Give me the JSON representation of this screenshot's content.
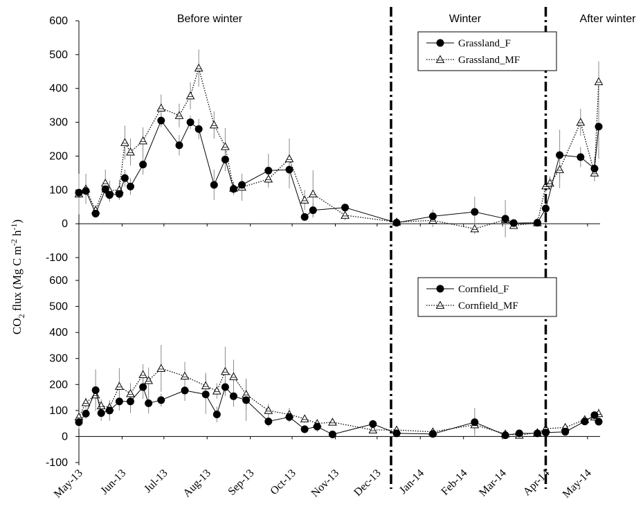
{
  "chart_data": {
    "type": "line",
    "ylabel": "CO2 flux (Mg C m-2 h-1)",
    "ylabel_parts": {
      "base": "CO",
      "sub": "2",
      "mid": " flux (Mg C m",
      "sup1": "-2",
      "mid2": " h",
      "sup2": "-1",
      "end": ")"
    },
    "periods": [
      "Before winter",
      "Winter",
      "After winter"
    ],
    "period_boundaries": [
      "2013-12-11",
      "2014-04-01"
    ],
    "x_ticks": [
      "May-13",
      "Jun-13",
      "Jul-13",
      "Aug-13",
      "Sep-13",
      "Oct-13",
      "Nov-13",
      "Dec-13",
      "Jan-14",
      "Feb-14",
      "Mar-14",
      "Apr-14",
      "May-14"
    ],
    "ylim": [
      -100,
      600
    ],
    "yticks": [
      "-100",
      "0",
      "100",
      "200",
      "300",
      "400",
      "500",
      "600"
    ],
    "panels": [
      {
        "legend": [
          "Grassland_F",
          "Grassland_MF"
        ],
        "series": [
          {
            "name": "Grassland_F",
            "style": "solid-filled-circle",
            "points": [
              [
                "2013-05-01",
                92,
                10
              ],
              [
                "2013-05-06",
                97,
                8
              ],
              [
                "2013-05-13",
                30,
                8
              ],
              [
                "2013-05-20",
                102,
                15
              ],
              [
                "2013-05-23",
                85,
                20
              ],
              [
                "2013-05-30",
                88,
                15
              ],
              [
                "2013-06-03",
                135,
                25
              ],
              [
                "2013-06-07",
                110,
                25
              ],
              [
                "2013-06-16",
                175,
                30
              ],
              [
                "2013-06-29",
                305,
                20
              ],
              [
                "2013-07-12",
                232,
                30
              ],
              [
                "2013-07-20",
                300,
                20
              ],
              [
                "2013-07-26",
                280,
                30
              ],
              [
                "2013-08-06",
                115,
                45
              ],
              [
                "2013-08-14",
                190,
                35
              ],
              [
                "2013-08-20",
                103,
                15
              ],
              [
                "2013-08-26",
                115,
                20
              ],
              [
                "2013-09-14",
                157,
                50
              ],
              [
                "2013-09-29",
                160,
                55
              ],
              [
                "2013-10-10",
                20,
                10
              ],
              [
                "2013-10-16",
                40,
                20
              ],
              [
                "2013-11-08",
                48,
                10
              ],
              [
                "2013-12-15",
                3,
                5
              ],
              [
                "2014-01-10",
                22,
                20
              ],
              [
                "2014-02-09",
                35,
                45
              ],
              [
                "2014-03-03",
                15,
                55
              ],
              [
                "2014-03-09",
                2,
                10
              ],
              [
                "2014-03-26",
                3,
                5
              ],
              [
                "2014-04-01",
                45,
                20
              ],
              [
                "2014-04-11",
                203,
                75
              ],
              [
                "2014-04-26",
                197,
                30
              ],
              [
                "2014-05-06",
                163,
                35
              ],
              [
                "2014-05-09",
                287,
                95
              ]
            ]
          },
          {
            "name": "Grassland_MF",
            "style": "dotted-open-triangle",
            "points": [
              [
                "2013-05-01",
                88,
                60
              ],
              [
                "2013-05-06",
                103,
                45
              ],
              [
                "2013-05-13",
                40,
                15
              ],
              [
                "2013-05-20",
                120,
                40
              ],
              [
                "2013-05-23",
                98,
                30
              ],
              [
                "2013-05-30",
                100,
                30
              ],
              [
                "2013-06-03",
                240,
                50
              ],
              [
                "2013-06-07",
                212,
                40
              ],
              [
                "2013-06-16",
                245,
                40
              ],
              [
                "2013-06-29",
                342,
                40
              ],
              [
                "2013-07-12",
                320,
                35
              ],
              [
                "2013-07-20",
                378,
                40
              ],
              [
                "2013-07-26",
                460,
                55
              ],
              [
                "2013-08-06",
                292,
                40
              ],
              [
                "2013-08-14",
                228,
                55
              ],
              [
                "2013-08-20",
                105,
                20
              ],
              [
                "2013-08-26",
                108,
                40
              ],
              [
                "2013-09-14",
                132,
                15
              ],
              [
                "2013-09-29",
                192,
                60
              ],
              [
                "2013-10-10",
                70,
                30
              ],
              [
                "2013-10-16",
                88,
                70
              ],
              [
                "2013-11-08",
                25,
                15
              ],
              [
                "2013-12-15",
                5,
                5
              ],
              [
                "2014-01-10",
                10,
                20
              ],
              [
                "2014-02-09",
                -15,
                15
              ],
              [
                "2014-03-03",
                12,
                15
              ],
              [
                "2014-03-09",
                -5,
                10
              ],
              [
                "2014-03-26",
                3,
                5
              ],
              [
                "2014-04-01",
                112,
                20
              ],
              [
                "2014-04-04",
                120,
                20
              ],
              [
                "2014-04-11",
                160,
                55
              ],
              [
                "2014-04-26",
                300,
                40
              ],
              [
                "2014-05-06",
                150,
                25
              ],
              [
                "2014-05-09",
                420,
                60
              ]
            ]
          }
        ]
      },
      {
        "legend": [
          "Cornfield_F",
          "Cornfield_MF"
        ],
        "series": [
          {
            "name": "Cornfield_F",
            "style": "solid-filled-circle",
            "points": [
              [
                "2013-05-01",
                55,
                25
              ],
              [
                "2013-05-06",
                88,
                20
              ],
              [
                "2013-05-13",
                178,
                80
              ],
              [
                "2013-05-17",
                90,
                30
              ],
              [
                "2013-05-23",
                100,
                40
              ],
              [
                "2013-05-30",
                135,
                35
              ],
              [
                "2013-06-07",
                135,
                45
              ],
              [
                "2013-06-16",
                190,
                45
              ],
              [
                "2013-06-20",
                128,
                40
              ],
              [
                "2013-06-29",
                140,
                25
              ],
              [
                "2013-07-16",
                177,
                40
              ],
              [
                "2013-07-31",
                162,
                75
              ],
              [
                "2013-08-08",
                85,
                30
              ],
              [
                "2013-08-14",
                190,
                30
              ],
              [
                "2013-08-20",
                155,
                40
              ],
              [
                "2013-08-29",
                140,
                80
              ],
              [
                "2013-09-14",
                58,
                20
              ],
              [
                "2013-09-29",
                75,
                20
              ],
              [
                "2013-10-10",
                28,
                15
              ],
              [
                "2013-10-19",
                38,
                20
              ],
              [
                "2013-10-30",
                8,
                5
              ],
              [
                "2013-11-28",
                48,
                15
              ],
              [
                "2013-12-15",
                12,
                8
              ],
              [
                "2014-01-10",
                10,
                8
              ],
              [
                "2014-02-09",
                55,
                55
              ],
              [
                "2014-03-03",
                5,
                5
              ],
              [
                "2014-03-13",
                12,
                8
              ],
              [
                "2014-03-26",
                12,
                5
              ],
              [
                "2014-04-01",
                15,
                8
              ],
              [
                "2014-04-15",
                18,
                8
              ],
              [
                "2014-04-29",
                58,
                15
              ],
              [
                "2014-05-06",
                82,
                15
              ],
              [
                "2014-05-09",
                57,
                15
              ]
            ]
          },
          {
            "name": "Cornfield_MF",
            "style": "dotted-open-triangle",
            "points": [
              [
                "2013-05-01",
                75,
                15
              ],
              [
                "2013-05-06",
                130,
                20
              ],
              [
                "2013-05-13",
                160,
                20
              ],
              [
                "2013-05-17",
                118,
                25
              ],
              [
                "2013-05-23",
                112,
                20
              ],
              [
                "2013-05-30",
                193,
                70
              ],
              [
                "2013-06-07",
                165,
                40
              ],
              [
                "2013-06-16",
                238,
                40
              ],
              [
                "2013-06-20",
                215,
                50
              ],
              [
                "2013-06-29",
                262,
                90
              ],
              [
                "2013-07-16",
                232,
                55
              ],
              [
                "2013-07-31",
                195,
                50
              ],
              [
                "2013-08-08",
                175,
                30
              ],
              [
                "2013-08-14",
                250,
                95
              ],
              [
                "2013-08-20",
                230,
                65
              ],
              [
                "2013-08-29",
                162,
                60
              ],
              [
                "2013-09-14",
                100,
                25
              ],
              [
                "2013-09-29",
                85,
                25
              ],
              [
                "2013-10-10",
                68,
                15
              ],
              [
                "2013-10-19",
                50,
                15
              ],
              [
                "2013-10-30",
                55,
                10
              ],
              [
                "2013-11-28",
                25,
                10
              ],
              [
                "2013-12-15",
                25,
                10
              ],
              [
                "2014-01-10",
                18,
                15
              ],
              [
                "2014-02-09",
                45,
                30
              ],
              [
                "2014-03-03",
                10,
                5
              ],
              [
                "2014-03-13",
                5,
                5
              ],
              [
                "2014-03-26",
                15,
                10
              ],
              [
                "2014-04-01",
                30,
                20
              ],
              [
                "2014-04-15",
                35,
                10
              ],
              [
                "2014-04-29",
                65,
                15
              ],
              [
                "2014-05-06",
                75,
                15
              ],
              [
                "2014-05-09",
                88,
                20
              ]
            ]
          }
        ]
      }
    ]
  }
}
